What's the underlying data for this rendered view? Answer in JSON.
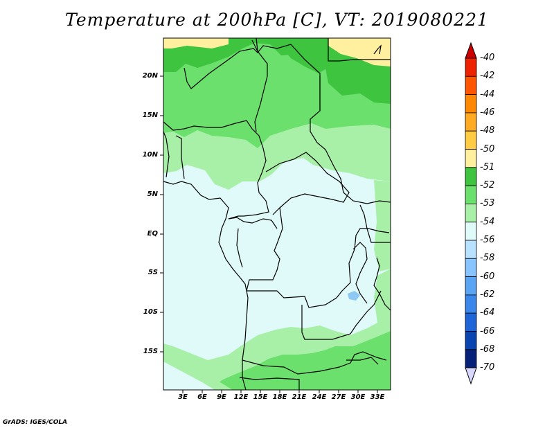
{
  "title": "Temperature at 200hPa [C], VT: 2019080221",
  "credit": "GrADS: IGES/COLA",
  "lat_labels": [
    "20N",
    "15N",
    "10N",
    "5N",
    "EQ",
    "5S",
    "10S",
    "15S"
  ],
  "lon_labels": [
    "3E",
    "6E",
    "9E",
    "12E",
    "15E",
    "18E",
    "21E",
    "24E",
    "27E",
    "30E",
    "33E"
  ],
  "colorbar": {
    "labels": [
      "-40",
      "-42",
      "-44",
      "-46",
      "-48",
      "-50",
      "-51",
      "-52",
      "-53",
      "-54",
      "-56",
      "-58",
      "-60",
      "-62",
      "-64",
      "-66",
      "-68",
      "-70"
    ],
    "colors": [
      "#cc0000",
      "#ee2200",
      "#ff5500",
      "#ff8800",
      "#ffaa22",
      "#ffcc44",
      "#fff0a0",
      "#3ec43e",
      "#6ce06c",
      "#a8f0a8",
      "#e0fafa",
      "#b8e0ff",
      "#88c4ff",
      "#5aa4f4",
      "#3a86ea",
      "#1e66d8",
      "#0a44b0",
      "#06207a",
      "#000060"
    ],
    "top_arrow_color": "#cc0000",
    "bottom_arrow_color": "#d8d8ff"
  },
  "colors": {
    "ocean": "#e0fafa",
    "land_54": "#e0fafa",
    "level_53": "#a8f0a8",
    "level_52": "#6ce06c",
    "level_51": "#3ec43e",
    "level_50": "#fff0a0",
    "lake": "#8ec8f4"
  }
}
